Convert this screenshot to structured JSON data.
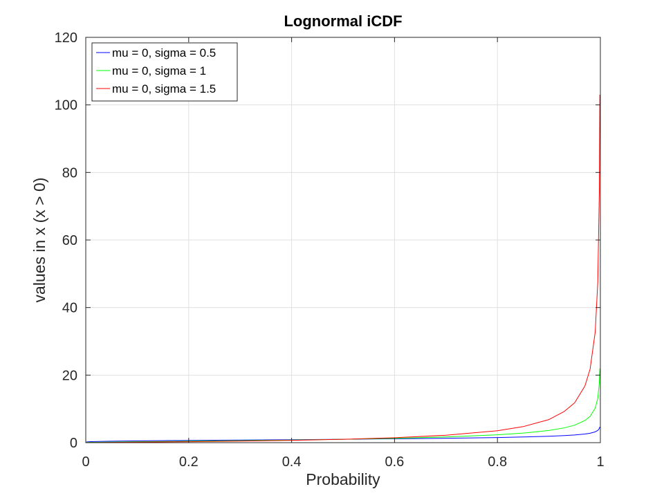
{
  "chart_data": {
    "type": "line",
    "title": "Lognormal iCDF",
    "xlabel": "Probability",
    "ylabel": "values in x (x > 0)",
    "xlim": [
      0,
      1
    ],
    "ylim": [
      0,
      120
    ],
    "xticks": [
      0,
      0.2,
      0.4,
      0.6,
      0.8,
      1
    ],
    "xtick_labels": [
      "0",
      "0.2",
      "0.4",
      "0.6",
      "0.8",
      "1"
    ],
    "yticks": [
      0,
      20,
      40,
      60,
      80,
      100,
      120
    ],
    "ytick_labels": [
      "0",
      "20",
      "40",
      "60",
      "80",
      "100",
      "120"
    ],
    "grid": true,
    "legend_position": "top-left",
    "x": [
      0.001,
      0.01,
      0.05,
      0.1,
      0.2,
      0.3,
      0.4,
      0.5,
      0.6,
      0.7,
      0.8,
      0.85,
      0.9,
      0.93,
      0.95,
      0.97,
      0.98,
      0.99,
      0.995,
      0.998,
      0.999
    ],
    "series": [
      {
        "name": "mu = 0, sigma = 0.5",
        "color": "#0000ff",
        "values": [
          0.21,
          0.31,
          0.44,
          0.53,
          0.66,
          0.77,
          0.88,
          1.0,
          1.14,
          1.3,
          1.52,
          1.68,
          1.9,
          2.09,
          2.28,
          2.56,
          2.79,
          3.2,
          3.62,
          4.18,
          4.69
        ]
      },
      {
        "name": "mu = 0, sigma = 1",
        "color": "#00ff00",
        "values": [
          0.05,
          0.1,
          0.19,
          0.28,
          0.43,
          0.59,
          0.78,
          1.0,
          1.29,
          1.69,
          2.32,
          2.83,
          3.6,
          4.39,
          5.18,
          6.56,
          7.79,
          10.24,
          13.14,
          17.73,
          21.98
        ]
      },
      {
        "name": "mu = 0, sigma = 1.5",
        "color": "#ff0000",
        "values": [
          0.01,
          0.03,
          0.08,
          0.15,
          0.28,
          0.46,
          0.68,
          1.0,
          1.46,
          2.2,
          3.53,
          4.75,
          6.84,
          9.26,
          11.8,
          16.8,
          21.76,
          32.79,
          47.64,
          74.7,
          103.0
        ]
      }
    ]
  }
}
